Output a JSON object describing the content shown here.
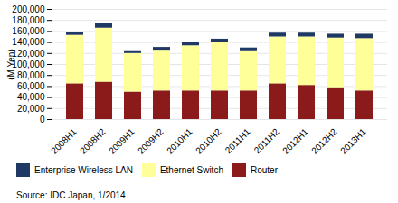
{
  "chart_data": {
    "type": "bar",
    "stacked": true,
    "categories": [
      "2008H1",
      "2008H2",
      "2009H1",
      "2009H2",
      "2010H1",
      "2010H2",
      "2011H1",
      "2011H2",
      "2012H1",
      "2012H2",
      "2013H1"
    ],
    "series": [
      {
        "name": "Router",
        "color": "#8B1A1A",
        "values": [
          65000,
          68000,
          50000,
          52000,
          52000,
          52000,
          52000,
          65000,
          62000,
          58000,
          52000
        ]
      },
      {
        "name": "Ethernet Switch",
        "color": "#FFFF99",
        "values": [
          88000,
          98000,
          70000,
          74000,
          82000,
          88000,
          73000,
          85000,
          88000,
          90000,
          95000
        ]
      },
      {
        "name": "Enterprise Wireless LAN",
        "color": "#1F3864",
        "values": [
          5000,
          8000,
          5000,
          5000,
          6000,
          6000,
          5000,
          7000,
          7000,
          7000,
          8000
        ]
      }
    ],
    "ylabel": "(M Yen)",
    "ylim": [
      0,
      200000
    ],
    "yticks": [
      0,
      {
        "value": 20000,
        "label": "20,000"
      },
      {
        "value": 40000,
        "label": "40,000"
      },
      {
        "value": 60000,
        "label": "60,000"
      },
      {
        "value": 80000,
        "label": "80,000"
      },
      {
        "value": 100000,
        "label": "100,000"
      },
      {
        "value": 120000,
        "label": "120,000"
      },
      {
        "value": 140000,
        "label": "140,000"
      },
      {
        "value": 160000,
        "label": "160,000"
      },
      {
        "value": 180000,
        "label": "180,000"
      },
      {
        "value": 200000,
        "label": "200,000"
      }
    ],
    "grid": true,
    "legend": "bottom",
    "caption": "Source: IDC Japan, 1/2014"
  }
}
